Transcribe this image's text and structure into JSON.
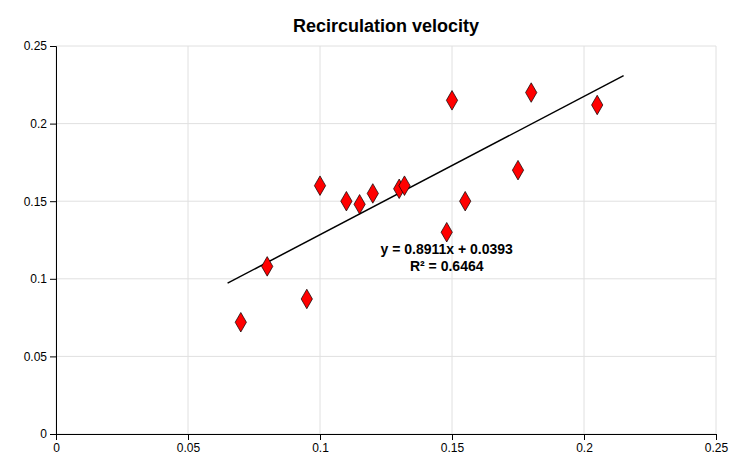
{
  "chart_data": {
    "type": "scatter",
    "title": "Recirculation velocity",
    "series": [
      {
        "type": "scatter",
        "marker": "diamond",
        "color": "#FF0000",
        "x": [
          0.07,
          0.08,
          0.095,
          0.1,
          0.11,
          0.115,
          0.12,
          0.13,
          0.132,
          0.148,
          0.15,
          0.155,
          0.175,
          0.18,
          0.205
        ],
        "values": [
          0.072,
          0.108,
          0.087,
          0.16,
          0.15,
          0.148,
          0.155,
          0.158,
          0.16,
          0.13,
          0.215,
          0.15,
          0.17,
          0.22,
          0.212
        ]
      },
      {
        "type": "line",
        "line_style": "solid",
        "color": "#000000",
        "x": [
          0.065,
          0.215
        ],
        "values": [
          0.0972215,
          0.2308865
        ]
      }
    ],
    "annotations": [
      "y = 0.8911x + 0.0393",
      "R² = 0.6464"
    ],
    "xlim": [
      0,
      0.25
    ],
    "ylim": [
      0,
      0.25
    ],
    "xticks": [
      0,
      0.05,
      0.1,
      0.15,
      0.2,
      0.25
    ],
    "yticks": [
      0,
      0.05,
      0.1,
      0.15,
      0.2,
      0.25
    ],
    "grid": true
  }
}
